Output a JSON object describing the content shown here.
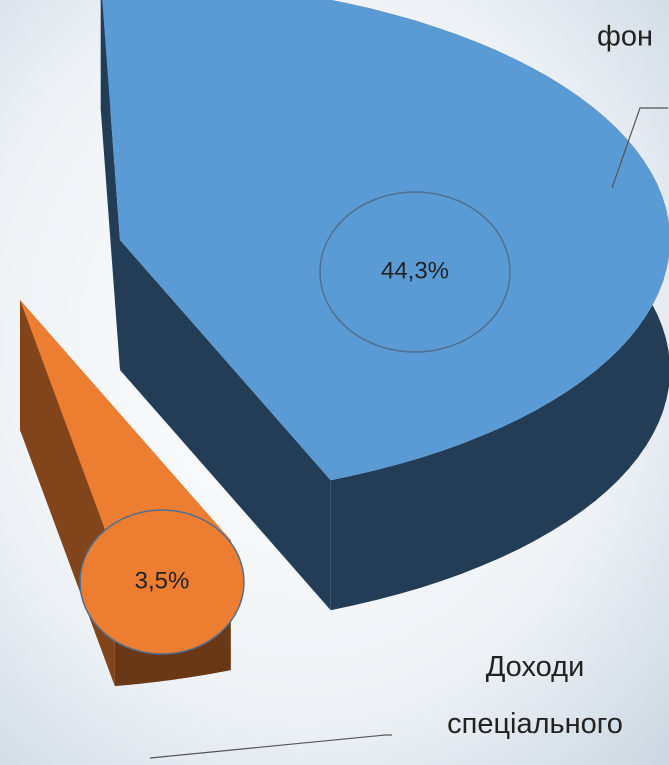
{
  "chart_data": {
    "type": "pie",
    "categories": [
      "фон",
      "Доходи спеціального"
    ],
    "values": [
      44.3,
      3.5
    ],
    "value_labels": [
      "44,3%",
      "3,5%"
    ],
    "colors": [
      "#5b9bd5",
      "#ed7d31"
    ]
  }
}
